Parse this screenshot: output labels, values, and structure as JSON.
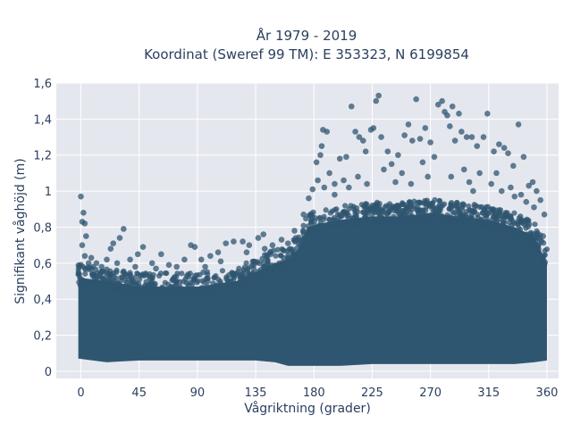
{
  "chart_data": {
    "type": "scatter",
    "title": "År 1979 - 2019",
    "subtitle": "Koordinat (Sweref 99 TM): E 353323, N 6199854",
    "xlabel": "Vågriktning (grader)",
    "ylabel": "Signifikant våghöjd (m)",
    "xlim": [
      -19,
      369
    ],
    "ylim": [
      -0.04,
      1.6
    ],
    "x_ticks": [
      0,
      45,
      90,
      135,
      180,
      225,
      270,
      315,
      360
    ],
    "x_tick_labels": [
      "0",
      "45",
      "90",
      "135",
      "180",
      "225",
      "270",
      "315",
      "360"
    ],
    "y_ticks": [
      0,
      0.2,
      0.4,
      0.6,
      0.8,
      1.0,
      1.2,
      1.4,
      1.6
    ],
    "y_tick_labels": [
      "0",
      "0,2",
      "0,4",
      "0,6",
      "0,8",
      "1",
      "1,2",
      "1,4",
      "1,6"
    ],
    "grid": true,
    "marker_color": "#2f5670",
    "background_color": "#e5e7ef",
    "dense_band": {
      "x": [
        -2,
        20,
        45,
        70,
        90,
        120,
        135,
        150,
        160,
        168,
        175,
        185,
        200,
        225,
        250,
        270,
        290,
        315,
        335,
        350,
        360
      ],
      "y_low": [
        0.07,
        0.05,
        0.06,
        0.06,
        0.06,
        0.06,
        0.06,
        0.05,
        0.03,
        0.03,
        0.03,
        0.03,
        0.03,
        0.04,
        0.04,
        0.04,
        0.04,
        0.04,
        0.04,
        0.05,
        0.06
      ],
      "y_high": [
        0.52,
        0.5,
        0.47,
        0.47,
        0.47,
        0.5,
        0.55,
        0.6,
        0.62,
        0.68,
        0.8,
        0.82,
        0.84,
        0.86,
        0.86,
        0.88,
        0.86,
        0.84,
        0.8,
        0.75,
        0.6
      ]
    },
    "points": [
      {
        "x": 0,
        "y": 0.97
      },
      {
        "x": 2,
        "y": 0.88
      },
      {
        "x": 1,
        "y": 0.83
      },
      {
        "x": 3,
        "y": 0.82
      },
      {
        "x": 4,
        "y": 0.75
      },
      {
        "x": 1,
        "y": 0.7
      },
      {
        "x": 3,
        "y": 0.64
      },
      {
        "x": 8,
        "y": 0.63
      },
      {
        "x": 12,
        "y": 0.6
      },
      {
        "x": 20,
        "y": 0.62
      },
      {
        "x": 23,
        "y": 0.68
      },
      {
        "x": 25,
        "y": 0.71
      },
      {
        "x": 30,
        "y": 0.74
      },
      {
        "x": 33,
        "y": 0.79
      },
      {
        "x": 38,
        "y": 0.62
      },
      {
        "x": 44,
        "y": 0.65
      },
      {
        "x": 48,
        "y": 0.69
      },
      {
        "x": 55,
        "y": 0.6
      },
      {
        "x": 62,
        "y": 0.65
      },
      {
        "x": 68,
        "y": 0.59
      },
      {
        "x": 80,
        "y": 0.62
      },
      {
        "x": 85,
        "y": 0.7
      },
      {
        "x": 88,
        "y": 0.69
      },
      {
        "x": 93,
        "y": 0.62
      },
      {
        "x": 100,
        "y": 0.64
      },
      {
        "x": 106,
        "y": 0.66
      },
      {
        "x": 112,
        "y": 0.71
      },
      {
        "x": 118,
        "y": 0.72
      },
      {
        "x": 125,
        "y": 0.72
      },
      {
        "x": 130,
        "y": 0.7
      },
      {
        "x": 137,
        "y": 0.74
      },
      {
        "x": 141,
        "y": 0.76
      },
      {
        "x": 148,
        "y": 0.7
      },
      {
        "x": 155,
        "y": 0.73
      },
      {
        "x": 160,
        "y": 0.71
      },
      {
        "x": 165,
        "y": 0.78
      },
      {
        "x": 172,
        "y": 0.87
      },
      {
        "x": 176,
        "y": 0.96
      },
      {
        "x": 179,
        "y": 1.01
      },
      {
        "x": 182,
        "y": 1.16
      },
      {
        "x": 185,
        "y": 1.2
      },
      {
        "x": 186,
        "y": 1.25
      },
      {
        "x": 187,
        "y": 1.34
      },
      {
        "x": 190,
        "y": 1.33
      },
      {
        "x": 192,
        "y": 1.1
      },
      {
        "x": 196,
        "y": 1.04
      },
      {
        "x": 200,
        "y": 1.18
      },
      {
        "x": 205,
        "y": 1.19
      },
      {
        "x": 209,
        "y": 1.47
      },
      {
        "x": 212,
        "y": 1.33
      },
      {
        "x": 215,
        "y": 1.3
      },
      {
        "x": 218,
        "y": 1.28
      },
      {
        "x": 220,
        "y": 1.22
      },
      {
        "x": 224,
        "y": 1.34
      },
      {
        "x": 226,
        "y": 1.35
      },
      {
        "x": 228,
        "y": 1.5
      },
      {
        "x": 230,
        "y": 1.53
      },
      {
        "x": 232,
        "y": 1.3
      },
      {
        "x": 237,
        "y": 1.22
      },
      {
        "x": 240,
        "y": 1.15
      },
      {
        "x": 245,
        "y": 1.2
      },
      {
        "x": 250,
        "y": 1.31
      },
      {
        "x": 253,
        "y": 1.37
      },
      {
        "x": 256,
        "y": 1.28
      },
      {
        "x": 259,
        "y": 1.51
      },
      {
        "x": 262,
        "y": 1.29
      },
      {
        "x": 266,
        "y": 1.35
      },
      {
        "x": 270,
        "y": 1.27
      },
      {
        "x": 273,
        "y": 1.19
      },
      {
        "x": 276,
        "y": 1.48
      },
      {
        "x": 279,
        "y": 1.5
      },
      {
        "x": 281,
        "y": 1.44
      },
      {
        "x": 283,
        "y": 1.42
      },
      {
        "x": 285,
        "y": 1.36
      },
      {
        "x": 287,
        "y": 1.47
      },
      {
        "x": 289,
        "y": 1.28
      },
      {
        "x": 292,
        "y": 1.43
      },
      {
        "x": 294,
        "y": 1.33
      },
      {
        "x": 298,
        "y": 1.3
      },
      {
        "x": 302,
        "y": 1.3
      },
      {
        "x": 306,
        "y": 1.25
      },
      {
        "x": 311,
        "y": 1.3
      },
      {
        "x": 314,
        "y": 1.43
      },
      {
        "x": 319,
        "y": 1.22
      },
      {
        "x": 323,
        "y": 1.26
      },
      {
        "x": 327,
        "y": 1.24
      },
      {
        "x": 330,
        "y": 1.21
      },
      {
        "x": 334,
        "y": 1.14
      },
      {
        "x": 338,
        "y": 1.37
      },
      {
        "x": 342,
        "y": 1.19
      },
      {
        "x": 346,
        "y": 1.03
      },
      {
        "x": 349,
        "y": 1.05
      },
      {
        "x": 352,
        "y": 1.0
      },
      {
        "x": 355,
        "y": 0.95
      },
      {
        "x": 358,
        "y": 0.87
      },
      {
        "x": 357,
        "y": 0.75
      },
      {
        "x": 196,
        "y": 0.98
      },
      {
        "x": 203,
        "y": 1.06
      },
      {
        "x": 214,
        "y": 1.08
      },
      {
        "x": 234,
        "y": 1.12
      },
      {
        "x": 243,
        "y": 1.05
      },
      {
        "x": 248,
        "y": 1.1
      },
      {
        "x": 264,
        "y": 1.16
      },
      {
        "x": 268,
        "y": 1.08
      },
      {
        "x": 296,
        "y": 1.12
      },
      {
        "x": 300,
        "y": 1.05
      },
      {
        "x": 308,
        "y": 1.1
      },
      {
        "x": 317,
        "y": 1.04
      },
      {
        "x": 321,
        "y": 1.1
      },
      {
        "x": 325,
        "y": 1.0
      },
      {
        "x": 332,
        "y": 1.02
      },
      {
        "x": 340,
        "y": 0.98
      },
      {
        "x": 344,
        "y": 0.94
      },
      {
        "x": 183,
        "y": 1.06
      },
      {
        "x": 188,
        "y": 1.02
      },
      {
        "x": 207,
        "y": 1.02
      },
      {
        "x": 221,
        "y": 1.04
      },
      {
        "x": 255,
        "y": 1.04
      },
      {
        "x": 286,
        "y": 1.08
      },
      {
        "x": 303,
        "y": 1.0
      },
      {
        "x": 335,
        "y": 0.97
      },
      {
        "x": 350,
        "y": 0.91
      },
      {
        "x": 142,
        "y": 0.68
      },
      {
        "x": 128,
        "y": 0.66
      },
      {
        "x": 108,
        "y": 0.61
      },
      {
        "x": 96,
        "y": 0.58
      },
      {
        "x": 74,
        "y": 0.58
      },
      {
        "x": 58,
        "y": 0.57
      },
      {
        "x": 42,
        "y": 0.58
      },
      {
        "x": 28,
        "y": 0.6
      },
      {
        "x": 16,
        "y": 0.58
      },
      {
        "x": 6,
        "y": 0.6
      }
    ]
  }
}
